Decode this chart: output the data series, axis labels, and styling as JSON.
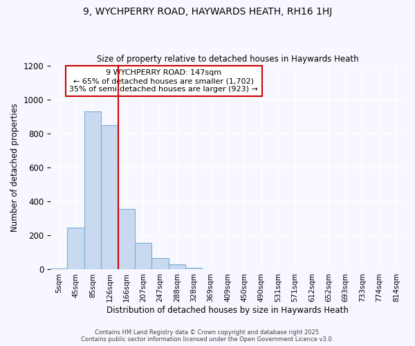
{
  "title1": "9, WYCHPERRY ROAD, HAYWARDS HEATH, RH16 1HJ",
  "title2": "Size of property relative to detached houses in Haywards Heath",
  "xlabel": "Distribution of detached houses by size in Haywards Heath",
  "ylabel": "Number of detached properties",
  "categories": [
    "5sqm",
    "45sqm",
    "85sqm",
    "126sqm",
    "166sqm",
    "207sqm",
    "247sqm",
    "288sqm",
    "328sqm",
    "369sqm",
    "409sqm",
    "450sqm",
    "490sqm",
    "531sqm",
    "571sqm",
    "612sqm",
    "652sqm",
    "693sqm",
    "733sqm",
    "774sqm",
    "814sqm"
  ],
  "values": [
    5,
    248,
    928,
    848,
    355,
    157,
    65,
    30,
    10,
    0,
    0,
    0,
    0,
    0,
    0,
    0,
    0,
    0,
    0,
    0,
    0
  ],
  "bar_color": "#c8d9f0",
  "bar_edge_color": "#7aaed6",
  "vline_x": 3.5,
  "vline_color": "#cc0000",
  "ylim": [
    0,
    1200
  ],
  "yticks": [
    0,
    200,
    400,
    600,
    800,
    1000,
    1200
  ],
  "annotation_title": "9 WYCHPERRY ROAD: 147sqm",
  "annotation_line1": "← 65% of detached houses are smaller (1,702)",
  "annotation_line2": "35% of semi-detached houses are larger (923) →",
  "annotation_box_color": "#ffffff",
  "annotation_box_edge": "#cc0000",
  "footer1": "Contains HM Land Registry data © Crown copyright and database right 2025.",
  "footer2": "Contains public sector information licensed under the Open Government Licence v3.0.",
  "fig_background": "#f7f7ff",
  "plot_background": "#f7f7ff",
  "grid_color": "#ffffff"
}
